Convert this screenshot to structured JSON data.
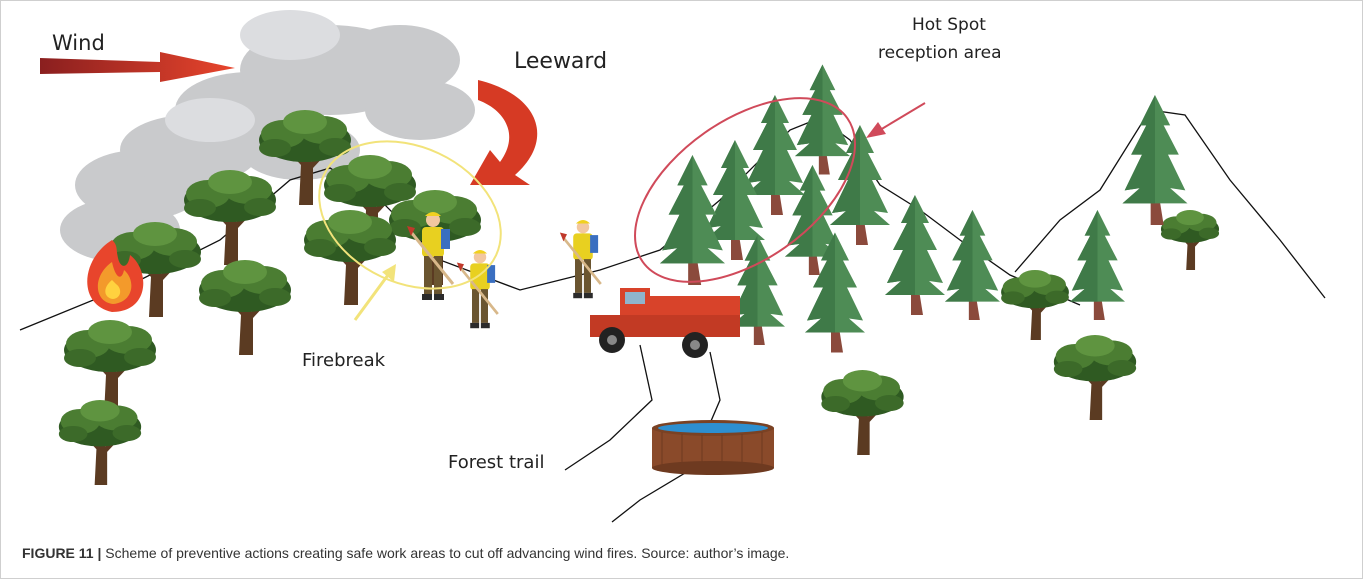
{
  "labels": {
    "wind": "Wind",
    "leeward": "Leeward",
    "hot_spot": [
      "Hot Spot",
      "reception area"
    ],
    "firebreak": "Firebreak",
    "forest_trail": "Forest trail"
  },
  "caption": {
    "label": "FIGURE 11 |",
    "text": "Scheme of preventive actions creating safe work areas to cut off advancing wind fires. Source: author’s image."
  }
}
